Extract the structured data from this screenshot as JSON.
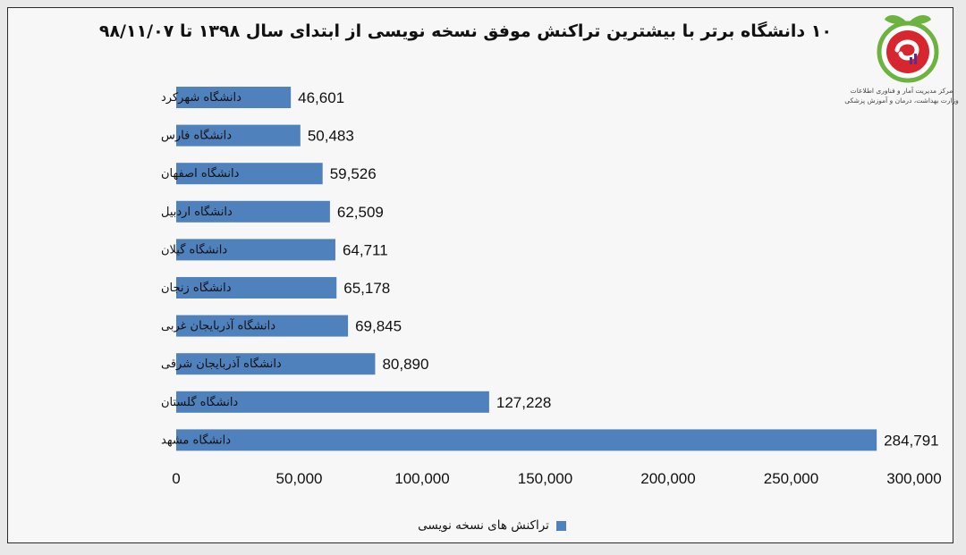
{
  "chart_data": {
    "type": "bar",
    "orientation": "horizontal",
    "title": "۱۰ دانشگاه برتر با بیشترین تراکنش موفق نسخه نویسی از ابتدای سال ۱۳۹۸ تا ۹۸/۱۱/۰۷",
    "categories": [
      "دانشگاه شهرکرد",
      "دانشگاه فارس",
      "دانشگاه اصفهان",
      "دانشگاه اردبیل",
      "دانشگاه گیلان",
      "دانشگاه زنجان",
      "دانشگاه آذربایجان غربی",
      "دانشگاه آذربایجان شرقی",
      "دانشگاه گلستان",
      "دانشگاه مشهد"
    ],
    "series": [
      {
        "name": "تراکنش های نسخه نویسی",
        "color": "#4f81bd",
        "values": [
          46601,
          50483,
          59526,
          62509,
          64711,
          65178,
          69845,
          80890,
          127228,
          284791
        ],
        "value_labels": [
          "46,601",
          "50,483",
          "59,526",
          "62,509",
          "64,711",
          "65,178",
          "69,845",
          "80,890",
          "127,228",
          "284,791"
        ]
      }
    ],
    "xlim": [
      0,
      300000
    ],
    "x_ticks": [
      0,
      50000,
      100000,
      150000,
      200000,
      250000,
      300000
    ],
    "x_tick_labels": [
      "0",
      "50,000",
      "100,000",
      "150,000",
      "200,000",
      "250,000",
      "300,000"
    ],
    "grid": false,
    "legend_position": "bottom"
  },
  "logo": {
    "name": "logo-apple-icon",
    "caption_line1": "مرکز مدیریت آمار و فناوری اطلاعات",
    "caption_line2": "وزارت بهداشت، درمان و آموزش پزشکی",
    "colors": {
      "leaf": "#6cb33f",
      "apple": "#d7262e",
      "accent": "#5b2d8e"
    }
  }
}
